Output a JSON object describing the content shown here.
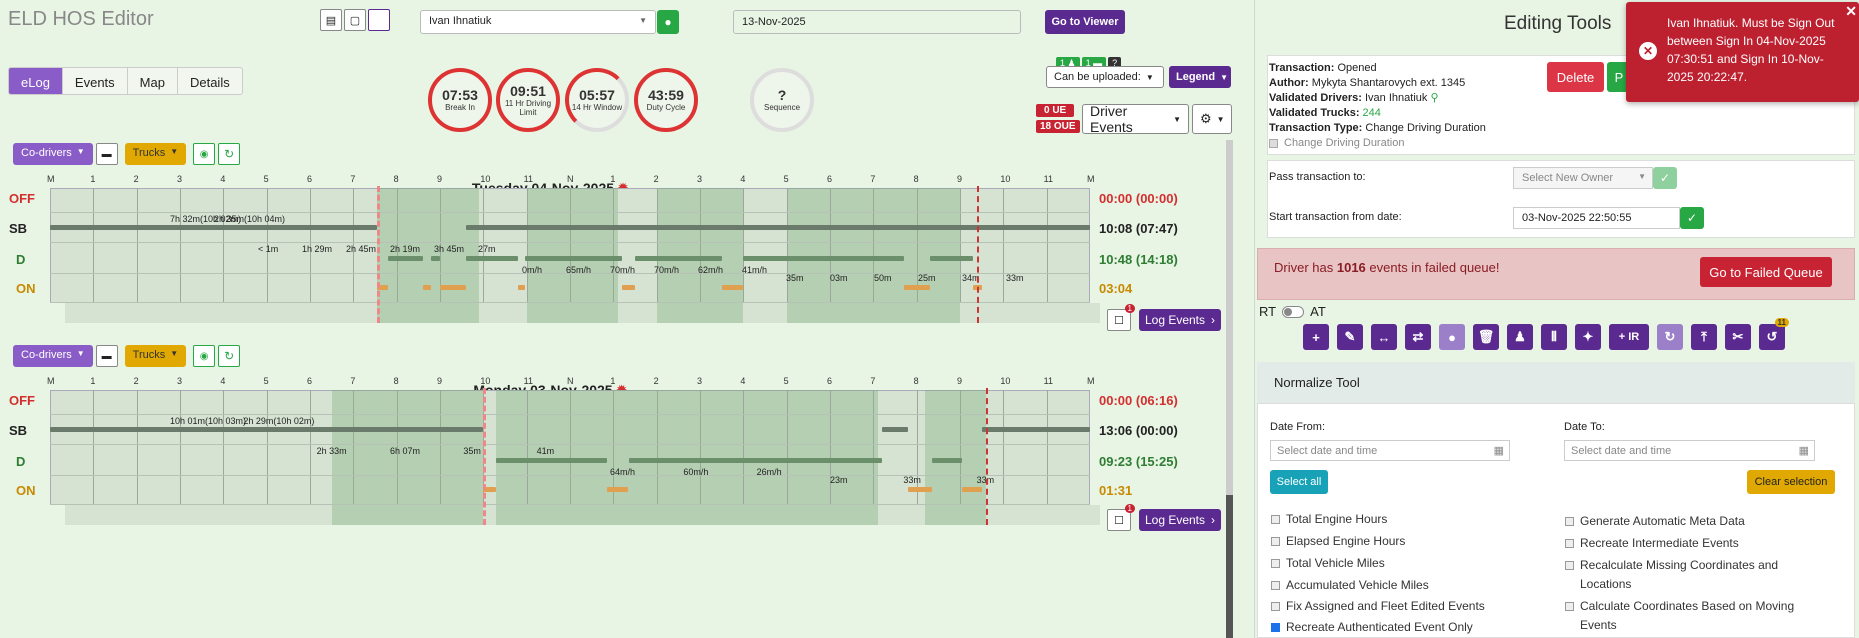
{
  "header": {
    "title": "ELD HOS Editor",
    "driver": "Ivan Ihnatiuk",
    "date": "13-Nov-2025",
    "go_viewer": "Go to Viewer"
  },
  "tabs": [
    "eLog",
    "Events",
    "Map",
    "Details"
  ],
  "gauges": [
    {
      "value": "07:53",
      "label": "Break In"
    },
    {
      "value": "09:51",
      "label": "11 Hr Driving Limit"
    },
    {
      "value": "05:57",
      "label": "14 Hr Window"
    },
    {
      "value": "43:59",
      "label": "Duty Cycle"
    },
    {
      "value": "?",
      "label": "Sequence"
    }
  ],
  "controls": {
    "can_upload": "Can be uploaded:",
    "legend": "Legend",
    "driver_events": "Driver Events",
    "ue": "0 UE",
    "oue": "18 OUE",
    "badge1": "1",
    "badge2": "1",
    "badge_q": "?"
  },
  "days": [
    {
      "title": "Tuesday 04-Nov-2025",
      "totals": {
        "off": "00:00 (00:00)",
        "sb": "10:08 (07:47)",
        "d": "10:48 (14:18)",
        "on": "03:04"
      },
      "log_events": "Log Events",
      "msg_count": "1",
      "labels": [
        "7h 32m(10h 02m)",
        "2h 35m(10h 04m)",
        "< 1m",
        "1h 29m",
        "2h 45m",
        "2h 19m",
        "3h 45m",
        "27m",
        "0m/h",
        "65m/h",
        "70m/h",
        "70m/h",
        "62m/h",
        "41m/h",
        "35m",
        "03m",
        "50m",
        "25m",
        "34m",
        "33m"
      ]
    },
    {
      "title": "Monday 03-Nov-2025",
      "totals": {
        "off": "00:00 (06:16)",
        "sb": "13:06 (00:00)",
        "d": "09:23 (15:25)",
        "on": "01:31"
      },
      "log_events": "Log Events",
      "msg_count": "1",
      "labels": [
        "10h 01m(10h 03m)",
        "2h 29m(10h 02m)",
        "2h 33m",
        "6h 07m",
        "35m",
        "41m",
        "64m/h",
        "60m/h",
        "26m/h",
        "23m",
        "33m",
        "33m"
      ]
    }
  ],
  "rows": {
    "off": "OFF",
    "sb": "SB",
    "d": "D",
    "on": "ON"
  },
  "hours": [
    "M",
    "1",
    "2",
    "3",
    "4",
    "5",
    "6",
    "7",
    "8",
    "9",
    "10",
    "11",
    "N",
    "1",
    "2",
    "3",
    "4",
    "5",
    "6",
    "7",
    "8",
    "9",
    "10",
    "11",
    "M"
  ],
  "day_controls": {
    "codrivers": "Co-drivers",
    "trucks": "Trucks"
  },
  "panel": {
    "title": "Editing Tools",
    "transaction": "Opened",
    "author": "Mykyta Shantarovych ext. 1345",
    "validated_drivers": "Ivan Ihnatiuk",
    "validated_trucks": "244",
    "transaction_type": "Change Driving Duration",
    "lbl_transaction": "Transaction:",
    "lbl_author": "Author:",
    "lbl_vdrivers": "Validated Drivers:",
    "lbl_vtrucks": "Validated Trucks:",
    "lbl_type": "Transaction Type:",
    "change_driving": "Change Driving Duration",
    "delete": "Delete",
    "publish": "P",
    "pass_to": "Pass transaction to:",
    "select_owner": "Select New Owner",
    "start_from": "Start transaction from date:",
    "start_date": "03-Nov-2025 22:50:55",
    "failed_pre": "Driver has ",
    "failed_count": "1016",
    "failed_post": " events in failed queue!",
    "go_failed": "Go to Failed Queue",
    "rt": "RT",
    "at": "AT",
    "ir": "+ IR",
    "badge_11": "11",
    "normalize": "Normalize Tool",
    "date_from": "Date From:",
    "date_to": "Date To:",
    "placeholder": "Select date and time",
    "select_all": "Select all",
    "clear_selection": "Clear selection",
    "options_left": [
      "Total Engine Hours",
      "Elapsed Engine Hours",
      "Total Vehicle Miles",
      "Accumulated Vehicle Miles",
      "Fix Assigned and Fleet Edited Events",
      "Recreate Authenticated Event Only"
    ],
    "options_right": [
      "Generate Automatic Meta Data",
      "Recreate Intermediate Events",
      "Recalculate Missing Coordinates and Locations",
      "Calculate Coordinates Based on Moving Events"
    ]
  },
  "toast": "Ivan Ihnatiuk. Must be Sign Out between Sign In 04-Nov-2025 07:30:51 and Sign In 10-Nov-2025 20:22:47.",
  "colors": {
    "purple": "#5b2a91",
    "green": "#28a745",
    "red": "#c82333",
    "yellow": "#e0a800",
    "teal": "#17a2b8"
  }
}
